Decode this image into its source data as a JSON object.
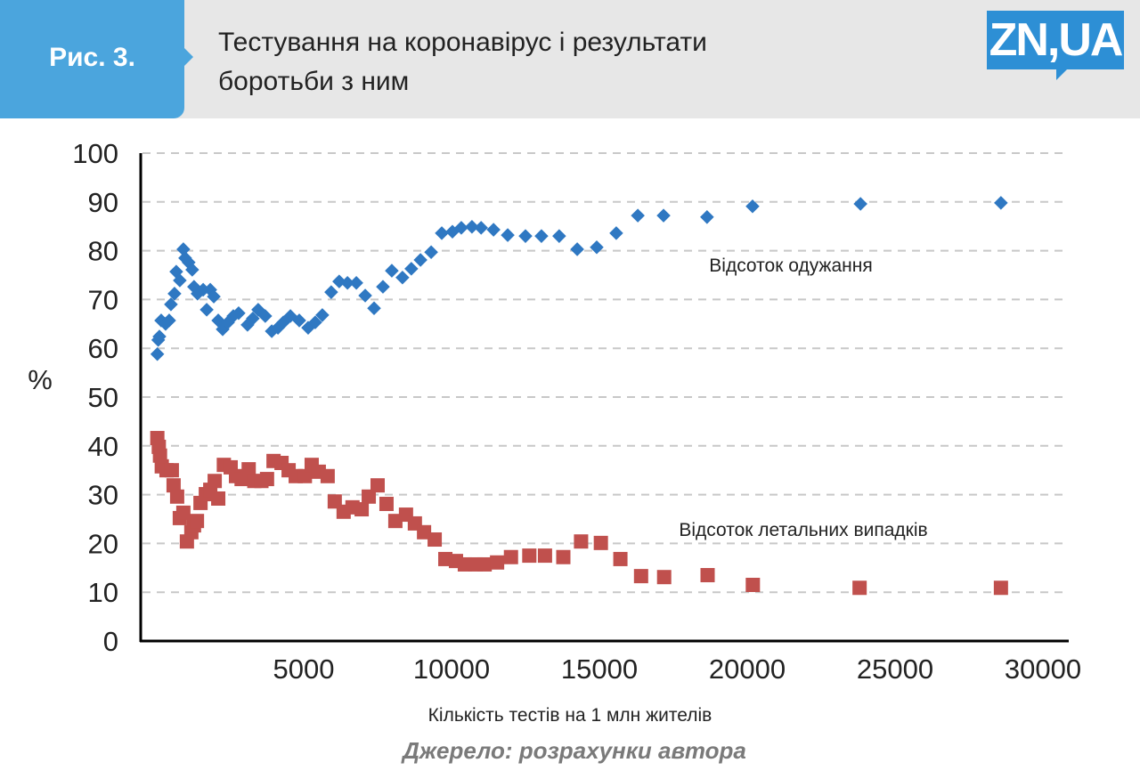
{
  "header": {
    "figure_label": "Рис. 3.",
    "title_line1": "Тестування на коронавірус і результати",
    "title_line2": "боротьби з ним",
    "logo": "ZN,UA"
  },
  "source": "Джерело: розрахунки автора",
  "chart_data": {
    "type": "scatter",
    "title": "Тестування на коронавірус і результати боротьби з ним",
    "xlabel": "Кількість тестів на 1 млн жителів",
    "ylabel": "%",
    "xlim": [
      -500,
      31000
    ],
    "ylim": [
      0,
      100
    ],
    "xticks": [
      5000,
      10000,
      15000,
      20000,
      25000,
      30000
    ],
    "yticks": [
      0,
      10,
      20,
      30,
      40,
      50,
      60,
      70,
      80,
      90,
      100
    ],
    "grid": "horizontal dashed",
    "colors": {
      "recovery": "#2f78c2",
      "fatality": "#c0504d"
    },
    "series": [
      {
        "name": "Відсоток одужання",
        "marker": "diamond",
        "points": [
          [
            50,
            58.8
          ],
          [
            80,
            61.7
          ],
          [
            120,
            62.4
          ],
          [
            180,
            65.7
          ],
          [
            330,
            65
          ],
          [
            450,
            65.7
          ],
          [
            510,
            69
          ],
          [
            630,
            71.2
          ],
          [
            690,
            75.7
          ],
          [
            810,
            73.9
          ],
          [
            930,
            80.3
          ],
          [
            990,
            78.5
          ],
          [
            1110,
            77.6
          ],
          [
            1230,
            76.1
          ],
          [
            1290,
            72.6
          ],
          [
            1410,
            71.2
          ],
          [
            1600,
            72
          ],
          [
            1720,
            67.9
          ],
          [
            1840,
            72
          ],
          [
            1960,
            70.6
          ],
          [
            2110,
            65.7
          ],
          [
            2260,
            63.9
          ],
          [
            2440,
            65.3
          ],
          [
            2620,
            66.6
          ],
          [
            2800,
            67.2
          ],
          [
            3100,
            64.8
          ],
          [
            3280,
            66.1
          ],
          [
            3460,
            67.9
          ],
          [
            3700,
            66.6
          ],
          [
            3920,
            63.5
          ],
          [
            4130,
            64.2
          ],
          [
            4310,
            65.3
          ],
          [
            4550,
            66.6
          ],
          [
            4850,
            65.7
          ],
          [
            5150,
            64.2
          ],
          [
            5390,
            65.3
          ],
          [
            5630,
            66.8
          ],
          [
            5930,
            71.5
          ],
          [
            6200,
            73.7
          ],
          [
            6480,
            73.4
          ],
          [
            6780,
            73.4
          ],
          [
            7080,
            70.8
          ],
          [
            7380,
            68.2
          ],
          [
            7680,
            72.6
          ],
          [
            7980,
            75.9
          ],
          [
            8340,
            74.5
          ],
          [
            8640,
            76.3
          ],
          [
            8950,
            78.1
          ],
          [
            9310,
            79.7
          ],
          [
            9670,
            83.6
          ],
          [
            10030,
            83.9
          ],
          [
            10330,
            84.7
          ],
          [
            10690,
            84.9
          ],
          [
            11000,
            84.7
          ],
          [
            11420,
            84.3
          ],
          [
            11900,
            83.2
          ],
          [
            12500,
            83
          ],
          [
            13040,
            83
          ],
          [
            13640,
            83
          ],
          [
            14250,
            80.3
          ],
          [
            14910,
            80.7
          ],
          [
            15570,
            83.6
          ],
          [
            16300,
            87.2
          ],
          [
            17170,
            87.2
          ],
          [
            18640,
            86.9
          ],
          [
            20180,
            89.1
          ],
          [
            23830,
            89.6
          ],
          [
            28580,
            89.8
          ]
        ]
      },
      {
        "name": "Відсоток летальних випадків",
        "marker": "square",
        "points": [
          [
            50,
            41.6
          ],
          [
            100,
            39.8
          ],
          [
            140,
            38
          ],
          [
            200,
            35.8
          ],
          [
            360,
            35
          ],
          [
            540,
            35
          ],
          [
            600,
            31.9
          ],
          [
            720,
            29.6
          ],
          [
            810,
            25.2
          ],
          [
            930,
            26.3
          ],
          [
            1050,
            20.4
          ],
          [
            1200,
            22.3
          ],
          [
            1290,
            23.7
          ],
          [
            1390,
            24.6
          ],
          [
            1510,
            28.3
          ],
          [
            1690,
            30.1
          ],
          [
            1840,
            31
          ],
          [
            1990,
            32.8
          ],
          [
            2110,
            29.2
          ],
          [
            2300,
            36.1
          ],
          [
            2530,
            35.6
          ],
          [
            2710,
            33.8
          ],
          [
            2900,
            33.2
          ],
          [
            3140,
            35.2
          ],
          [
            3330,
            32.8
          ],
          [
            3570,
            32.8
          ],
          [
            3760,
            33.2
          ],
          [
            3980,
            36.9
          ],
          [
            4250,
            36.5
          ],
          [
            4490,
            35
          ],
          [
            4730,
            33.8
          ],
          [
            5040,
            33.8
          ],
          [
            5270,
            36.1
          ],
          [
            5510,
            34.7
          ],
          [
            5810,
            33.8
          ],
          [
            6050,
            28.6
          ],
          [
            6350,
            26.5
          ],
          [
            6650,
            27.4
          ],
          [
            6960,
            27
          ],
          [
            7200,
            29.6
          ],
          [
            7500,
            31.9
          ],
          [
            7800,
            28.1
          ],
          [
            8100,
            24.6
          ],
          [
            8460,
            25.9
          ],
          [
            8760,
            24.1
          ],
          [
            9070,
            22.3
          ],
          [
            9430,
            20.8
          ],
          [
            9790,
            16.8
          ],
          [
            10150,
            16.4
          ],
          [
            10450,
            15.7
          ],
          [
            10810,
            15.7
          ],
          [
            11120,
            15.7
          ],
          [
            11540,
            16.1
          ],
          [
            12010,
            17.2
          ],
          [
            12630,
            17.5
          ],
          [
            13160,
            17.5
          ],
          [
            13780,
            17.2
          ],
          [
            14380,
            20.4
          ],
          [
            15050,
            20.1
          ],
          [
            15710,
            16.8
          ],
          [
            16410,
            13.3
          ],
          [
            17190,
            13.1
          ],
          [
            18660,
            13.5
          ],
          [
            20190,
            11.5
          ],
          [
            23800,
            10.9
          ],
          [
            28580,
            10.9
          ]
        ]
      }
    ],
    "annotations": [
      "Відсоток одужання",
      "Відсоток летальних випадків"
    ]
  }
}
